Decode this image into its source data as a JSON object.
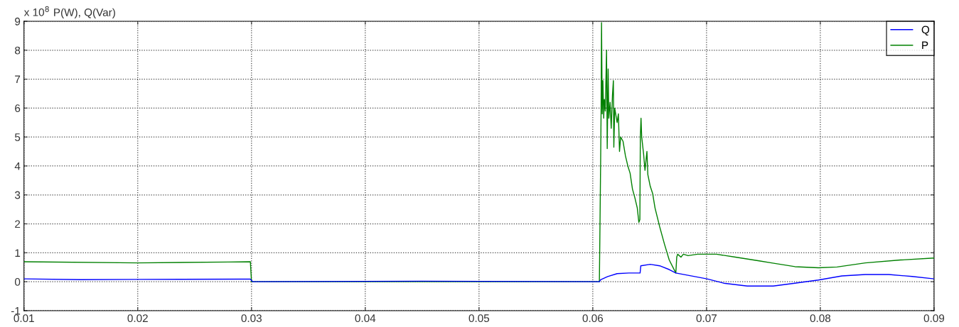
{
  "chart_data": {
    "type": "line",
    "title": "P(W), Q(Var)",
    "annotations": [
      "x 10$^{8}$"
    ],
    "xlim": [
      0.01,
      0.09
    ],
    "xticks": [
      0.01,
      0.02,
      0.03,
      0.04,
      0.05,
      0.06,
      0.07,
      0.08,
      0.09
    ],
    "ylim": [
      -1,
      9
    ],
    "yticks": [
      -1,
      0,
      1,
      2,
      3,
      4,
      5,
      6,
      7,
      8,
      9
    ],
    "grid": true,
    "legend": "top right",
    "line_style": "solid",
    "marker": "none",
    "series": [
      {
        "name": "Q",
        "color": "#0000ff",
        "x": [
          0.01,
          0.015,
          0.02,
          0.029,
          0.0299,
          0.0301,
          0.045,
          0.06058,
          0.06069,
          0.06131,
          0.06214,
          0.06318,
          0.06416,
          0.06422,
          0.06505,
          0.06588,
          0.06672,
          0.0673,
          0.06838,
          0.07004,
          0.0715,
          0.07358,
          0.07586,
          0.07777,
          0.07984,
          0.0819,
          0.08396,
          0.08602,
          0.08808,
          0.09
        ],
        "values": [
          0.1,
          0.07,
          0.08,
          0.09,
          0.09,
          0,
          0.02,
          0,
          0.07,
          0.18,
          0.28,
          0.3,
          0.3,
          0.55,
          0.6,
          0.55,
          0.42,
          0.3,
          0.22,
          0.1,
          -0.05,
          -0.15,
          -0.15,
          -0.05,
          0.06,
          0.2,
          0.25,
          0.25,
          0.18,
          0.1
        ]
      },
      {
        "name": "P",
        "color": "#008000",
        "x": [
          0.01,
          0.02,
          0.028,
          0.0299,
          0.03,
          0.045,
          0.06058,
          0.06062,
          0.06069,
          0.06073,
          0.06077,
          0.06083,
          0.06089,
          0.06096,
          0.06102,
          0.0611,
          0.06121,
          0.06127,
          0.06135,
          0.06141,
          0.06152,
          0.06162,
          0.06173,
          0.06181,
          0.06185,
          0.06193,
          0.06214,
          0.06225,
          0.06235,
          0.06245,
          0.06266,
          0.06287,
          0.06308,
          0.06328,
          0.06349,
          0.0637,
          0.06391,
          0.06405,
          0.06414,
          0.06418,
          0.06424,
          0.0643,
          0.06447,
          0.06459,
          0.06468,
          0.06476,
          0.06484,
          0.06505,
          0.06526,
          0.06547,
          0.06588,
          0.0663,
          0.06672,
          0.0673,
          0.06738,
          0.06746,
          0.06775,
          0.06796,
          0.06838,
          0.06921,
          0.07004,
          0.07087,
          0.07254,
          0.07462,
          0.07571,
          0.07777,
          0.07984,
          0.08148,
          0.08396,
          0.08705,
          0.09
        ],
        "values": [
          0.69,
          0.65,
          0.68,
          0.69,
          0,
          0,
          0,
          1.45,
          4.1,
          5.9,
          8.95,
          5.8,
          6.95,
          5.65,
          6.3,
          5.9,
          8.0,
          4.6,
          7.35,
          5.65,
          6.2,
          5.3,
          6.45,
          6.95,
          4.65,
          6.0,
          5.5,
          5.8,
          4.5,
          5.0,
          4.85,
          4.35,
          4.0,
          3.75,
          3.2,
          2.9,
          2.55,
          2.05,
          2.15,
          5.0,
          5.65,
          5.0,
          4.4,
          3.85,
          4.2,
          4.5,
          3.7,
          3.3,
          3.05,
          2.55,
          1.9,
          1.3,
          0.75,
          0.3,
          0.85,
          0.95,
          0.85,
          0.95,
          0.9,
          0.95,
          0.95,
          0.95,
          0.85,
          0.72,
          0.65,
          0.52,
          0.48,
          0.51,
          0.65,
          0.75,
          0.82
        ]
      }
    ]
  }
}
